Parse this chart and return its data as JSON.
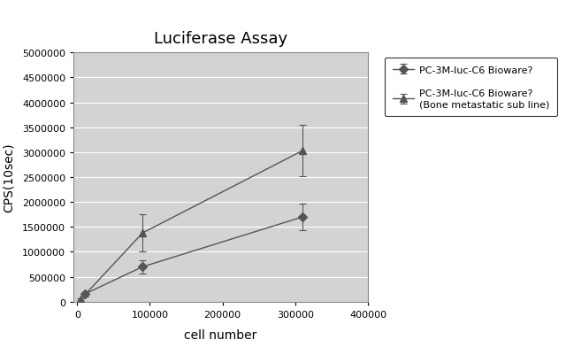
{
  "title": "Luciferase Assay",
  "xlabel": "cell number",
  "ylabel": "CPS(10sec)",
  "title_fontsize": 13,
  "label_fontsize": 10,
  "tick_fontsize": 8,
  "series1": {
    "label": "PC-3M-luc-C6 Bioware?",
    "x": [
      10000,
      90000,
      310000
    ],
    "y": [
      150000,
      700000,
      1700000
    ],
    "yerr": [
      40000,
      130000,
      270000
    ],
    "marker": "D",
    "markersize": 5,
    "color": "#555555",
    "linewidth": 1.0
  },
  "series2": {
    "label": "PC-3M-luc-C6 Bioware?\n(Bone metastatic sub line)",
    "x": [
      5000,
      90000,
      310000
    ],
    "y": [
      50000,
      1380000,
      3030000
    ],
    "yerr": [
      20000,
      380000,
      520000
    ],
    "marker": "^",
    "markersize": 6,
    "color": "#555555",
    "linewidth": 1.0
  },
  "xlim": [
    -5000,
    400000
  ],
  "ylim": [
    0,
    5000000
  ],
  "yticks": [
    0,
    500000,
    1000000,
    1500000,
    2000000,
    2500000,
    3000000,
    3500000,
    4000000,
    4500000,
    5000000
  ],
  "xticks": [
    0,
    100000,
    200000,
    300000,
    400000
  ],
  "background_color": "#d3d3d3",
  "figure_background": "#ffffff",
  "legend_fontsize": 8,
  "grid_color": "#bbbbbb",
  "grid_linewidth": 0.8
}
